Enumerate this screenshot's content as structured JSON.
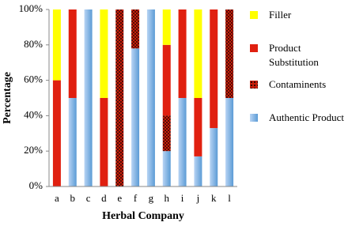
{
  "chart_data": {
    "type": "stacked_bar",
    "x_label": "Herbal Company",
    "y_label": "Percentage",
    "categories": [
      "a",
      "b",
      "c",
      "d",
      "e",
      "f",
      "g",
      "h",
      "i",
      "j",
      "k",
      "l"
    ],
    "series": [
      {
        "name": "Authentic Product",
        "color": "#5b9bd5",
        "fill": "gradient",
        "values": [
          0,
          50,
          100,
          0,
          0,
          78,
          100,
          20,
          50,
          17,
          33,
          50
        ]
      },
      {
        "name": "Contaminents",
        "color": "#c81e0a",
        "fill": "dots",
        "values": [
          0,
          0,
          0,
          0,
          100,
          22,
          0,
          20,
          0,
          0,
          0,
          50
        ]
      },
      {
        "name": "Product Substitution",
        "color": "#e02010",
        "fill": "solid",
        "values": [
          60,
          50,
          0,
          50,
          0,
          0,
          0,
          40,
          50,
          33,
          67,
          0
        ]
      },
      {
        "name": "Filler",
        "color": "#ffff00",
        "fill": "solid",
        "values": [
          40,
          0,
          0,
          50,
          0,
          0,
          0,
          20,
          0,
          50,
          0,
          0
        ]
      }
    ],
    "ylim": [
      0,
      100
    ],
    "yticks": [
      {
        "value": 0,
        "label": "0%"
      },
      {
        "value": 20,
        "label": "20%"
      },
      {
        "value": 40,
        "label": "40%"
      },
      {
        "value": 60,
        "label": "60%"
      },
      {
        "value": 80,
        "label": "80%"
      },
      {
        "value": 100,
        "label": "100%"
      }
    ],
    "legend": "right"
  }
}
